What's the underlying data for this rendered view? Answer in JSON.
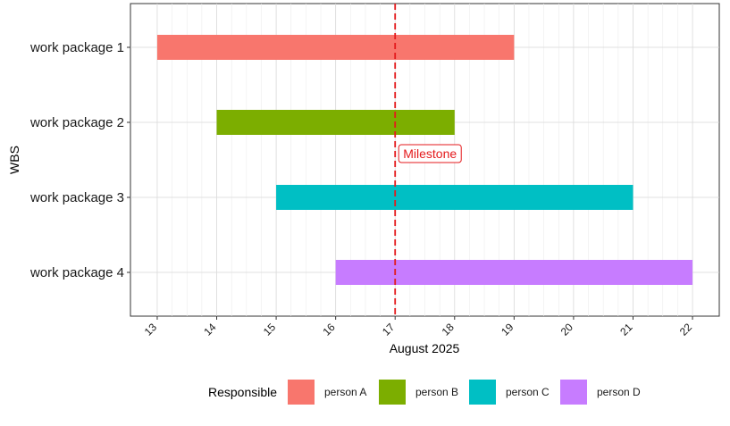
{
  "chart_data": {
    "type": "gantt",
    "xlabel": "August 2025",
    "ylabel": "WBS",
    "x_ticks": [
      13,
      14,
      15,
      16,
      17,
      18,
      19,
      20,
      21,
      22
    ],
    "xlim": [
      "2025-08-12.55",
      "2025-08-22.45"
    ],
    "tasks": [
      {
        "name": "work package 1",
        "start": "2025-08-13",
        "end": "2025-08-19",
        "responsible": "person A"
      },
      {
        "name": "work package 2",
        "start": "2025-08-14",
        "end": "2025-08-18",
        "responsible": "person B"
      },
      {
        "name": "work package 3",
        "start": "2025-08-15",
        "end": "2025-08-21",
        "responsible": "person C"
      },
      {
        "name": "work package 4",
        "start": "2025-08-16",
        "end": "2025-08-22",
        "responsible": "person D"
      }
    ],
    "milestone": {
      "label": "Milestone",
      "date": "2025-08-17",
      "color": "#e41a1c"
    },
    "legend": {
      "title": "Responsible",
      "position": "bottom",
      "entries": [
        {
          "label": "person A",
          "color": "#F8766D"
        },
        {
          "label": "person B",
          "color": "#7CAE00"
        },
        {
          "label": "person C",
          "color": "#00BFC4"
        },
        {
          "label": "person D",
          "color": "#C77CFF"
        }
      ]
    },
    "grid": true
  }
}
